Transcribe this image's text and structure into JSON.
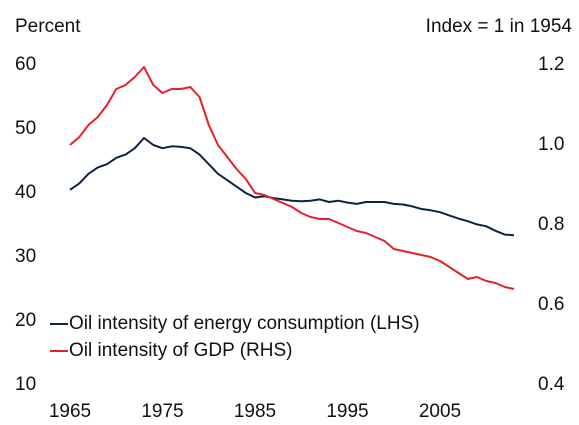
{
  "chart_data": {
    "type": "line",
    "y_label": "Percent",
    "y2_label": "Index = 1 in 1954",
    "x": [
      1965,
      1966,
      1967,
      1968,
      1969,
      1970,
      1971,
      1972,
      1973,
      1974,
      1975,
      1976,
      1977,
      1978,
      1979,
      1980,
      1981,
      1982,
      1983,
      1984,
      1985,
      1986,
      1987,
      1988,
      1989,
      1990,
      1991,
      1992,
      1993,
      1994,
      1995,
      1996,
      1997,
      1998,
      1999,
      2000,
      2001,
      2002,
      2003,
      2004,
      2005,
      2006,
      2007,
      2008,
      2009,
      2010,
      2011,
      2012,
      2013
    ],
    "series": [
      {
        "name": "Oil intensity of energy consumption (LHS)",
        "color": "#0b2444",
        "axis": "y",
        "values": [
          40.5,
          41.5,
          43,
          44,
          44.5,
          45.5,
          46,
          47,
          48.6,
          47.5,
          47,
          47.3,
          47.2,
          47,
          46,
          44.5,
          43,
          42,
          41,
          40,
          39.3,
          39.5,
          39.2,
          39,
          38.8,
          38.7,
          38.8,
          39,
          38.6,
          38.8,
          38.5,
          38.3,
          38.6,
          38.6,
          38.6,
          38.3,
          38.2,
          37.9,
          37.5,
          37.3,
          37,
          36.5,
          36,
          35.6,
          35.1,
          34.8,
          34.1,
          33.5,
          33.4
        ]
      },
      {
        "name": "Oil intensity of GDP (RHS)",
        "color": "#e8202a",
        "axis": "y2",
        "values": [
          1.0,
          1.02,
          1.05,
          1.07,
          1.1,
          1.14,
          1.15,
          1.17,
          1.195,
          1.15,
          1.13,
          1.14,
          1.14,
          1.145,
          1.12,
          1.05,
          1.0,
          0.97,
          0.94,
          0.915,
          0.88,
          0.875,
          0.865,
          0.855,
          0.845,
          0.83,
          0.82,
          0.815,
          0.815,
          0.805,
          0.795,
          0.785,
          0.78,
          0.77,
          0.76,
          0.74,
          0.735,
          0.73,
          0.725,
          0.72,
          0.71,
          0.695,
          0.68,
          0.665,
          0.67,
          0.66,
          0.655,
          0.645,
          0.64
        ]
      }
    ],
    "xlim": [
      1965,
      2013
    ],
    "xticks": [
      1965,
      1975,
      1985,
      1995,
      2005
    ],
    "ylim": [
      10,
      60
    ],
    "yticks": [
      10,
      20,
      30,
      40,
      50,
      60
    ],
    "y2lim": [
      0.4,
      1.2
    ],
    "y2ticks": [
      0.4,
      0.6,
      0.8,
      {
        "value": 1.0,
        "label": "1.0"
      },
      1.2
    ],
    "legend": "lower left"
  }
}
